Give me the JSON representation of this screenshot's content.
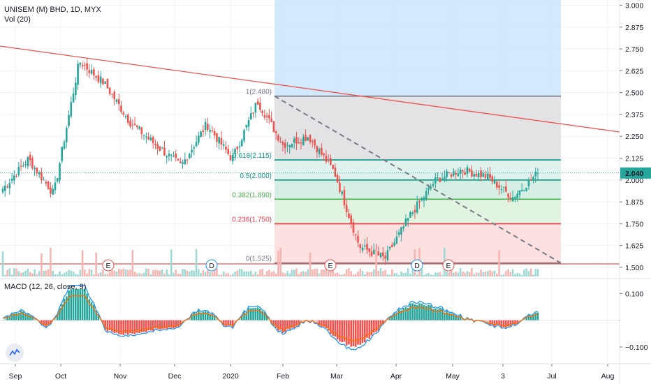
{
  "header": {
    "title": "UNISEM (M) BHD, 1D, MYX",
    "volume_label": "Vol (20)",
    "macd_label": "MACD (12, 26, close, 9)"
  },
  "colors": {
    "up": "#26a69a",
    "down": "#ef5350",
    "trendline": "#ef5350",
    "macd_line": "#2196f3",
    "signal_line": "#ff6d00",
    "fib_0": "#787b86",
    "fib_236": "#f23645",
    "fib_382": "#4caf50",
    "fib_5": "#089981",
    "fib_618": "#089981",
    "fib_1": "#787b86",
    "highlight_box": "#bbdefb",
    "current_price_tag": "#26a69a"
  },
  "chart_data": [
    {
      "type": "candlestick",
      "title": "UNISEM (M) BHD, 1D, MYX",
      "x_axis": {
        "type": "date",
        "tick_labels": [
          "Sep",
          "Oct",
          "Nov",
          "Dec",
          "2020",
          "Feb",
          "Mar",
          "Apr",
          "May",
          "3",
          "Jul",
          "Aug"
        ]
      },
      "y_axis": {
        "position": "right",
        "range": [
          1.44,
          3.03
        ],
        "tick_labels": [
          "3.000",
          "2.875",
          "2.750",
          "2.625",
          "2.500",
          "2.375",
          "2.250",
          "2.125",
          "2.000",
          "1.875",
          "1.750",
          "1.625",
          "1.500"
        ]
      },
      "current_price": "2.040",
      "approximate_close_path": [
        {
          "date": "Aug",
          "close": 1.95
        },
        {
          "date": "Sep",
          "close": 2.12
        },
        {
          "date": "Sep",
          "close": 1.92
        },
        {
          "date": "Oct",
          "close": 2.68
        },
        {
          "date": "Oct",
          "close": 2.55
        },
        {
          "date": "Nov",
          "close": 2.33
        },
        {
          "date": "Nov",
          "close": 2.2
        },
        {
          "date": "Dec",
          "close": 2.08
        },
        {
          "date": "Dec",
          "close": 2.32
        },
        {
          "date": "2020",
          "close": 2.12
        },
        {
          "date": "2020",
          "close": 2.45
        },
        {
          "date": "Feb",
          "close": 2.2
        },
        {
          "date": "Feb",
          "close": 2.25
        },
        {
          "date": "Mar",
          "close": 2.05
        },
        {
          "date": "Mar",
          "close": 1.62
        },
        {
          "date": "Apr",
          "close": 1.55
        },
        {
          "date": "Apr",
          "close": 1.8
        },
        {
          "date": "May",
          "close": 2.0
        },
        {
          "date": "May",
          "close": 2.06
        },
        {
          "date": "3",
          "close": 2.02
        },
        {
          "date": "3",
          "close": 1.9
        },
        {
          "date": "3",
          "close": 2.04
        }
      ],
      "fibonacci_levels": [
        {
          "label": "1(2.480)",
          "value": 2.48
        },
        {
          "label": "0.618(2.115)",
          "value": 2.115
        },
        {
          "label": "0.5(2.000)",
          "value": 2.0
        },
        {
          "label": "0.382(1.890)",
          "value": 1.89
        },
        {
          "label": "0.236(1.750)",
          "value": 1.75
        },
        {
          "label": "0(1.525)",
          "value": 1.525
        }
      ],
      "horizontal_support": 1.52,
      "event_markers": [
        {
          "label": "E"
        },
        {
          "label": "D"
        },
        {
          "label": "E"
        },
        {
          "label": "D"
        },
        {
          "label": "E"
        }
      ]
    },
    {
      "type": "bar",
      "title": "Vol (20)"
    },
    {
      "type": "line",
      "title": "MACD (12, 26, close, 9)",
      "y_axis": {
        "range": [
          -0.16,
          0.14
        ],
        "tick_labels": [
          "0.100",
          "0.000",
          "−0.100"
        ]
      }
    }
  ]
}
